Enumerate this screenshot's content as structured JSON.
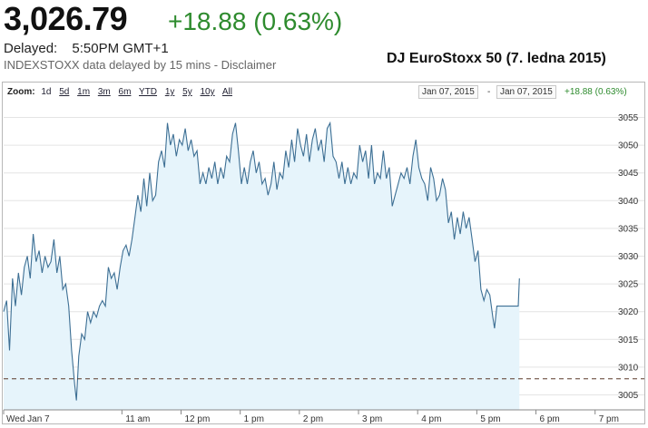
{
  "header": {
    "price": "3,026.79",
    "change": "+18.88 (0.63%)",
    "delayed_label": "Delayed:",
    "delayed_time": "5:50PM GMT+1",
    "source_note": "INDEXSTOXX data delayed by 15 mins - Disclaimer",
    "chart_title": "DJ EuroStoxx 50 (7. ledna 2015)"
  },
  "toolbar": {
    "zoom_label": "Zoom:",
    "zoom_options": [
      "1d",
      "5d",
      "1m",
      "3m",
      "6m",
      "YTD",
      "1y",
      "5y",
      "10y",
      "All"
    ],
    "date_from": "Jan 07, 2015",
    "date_sep": "-",
    "date_to": "Jan 07, 2015",
    "range_change": "+18.88 (0.63%)"
  },
  "colors": {
    "line": "#3d6f94",
    "fill": "#e6f4fb",
    "positive": "#2e8b2e",
    "reference_line": "#5a3a2a"
  },
  "chart_data": {
    "type": "area",
    "x_unit": "hours (local time)",
    "xlim": [
      9.0,
      19.5
    ],
    "ylim": [
      3003,
      3057
    ],
    "yticks": [
      3005,
      3010,
      3015,
      3020,
      3025,
      3030,
      3035,
      3040,
      3045,
      3050,
      3055
    ],
    "xtick_labels": [
      {
        "x": 9.0,
        "label": "Wed Jan 7"
      },
      {
        "x": 11.0,
        "label": "11 am"
      },
      {
        "x": 12.0,
        "label": "12 pm"
      },
      {
        "x": 13.0,
        "label": "1 pm"
      },
      {
        "x": 14.0,
        "label": "2 pm"
      },
      {
        "x": 15.0,
        "label": "3 pm"
      },
      {
        "x": 16.0,
        "label": "4 pm"
      },
      {
        "x": 17.0,
        "label": "5 pm"
      },
      {
        "x": 18.0,
        "label": "6 pm"
      },
      {
        "x": 19.0,
        "label": "7 pm"
      }
    ],
    "previous_close": 3007.91,
    "grid": "horizontal",
    "series": [
      {
        "values": [
          [
            9.0,
            3020
          ],
          [
            9.05,
            3022
          ],
          [
            9.1,
            3013
          ],
          [
            9.15,
            3026
          ],
          [
            9.2,
            3021
          ],
          [
            9.25,
            3027
          ],
          [
            9.3,
            3023
          ],
          [
            9.35,
            3028
          ],
          [
            9.4,
            3030
          ],
          [
            9.45,
            3026
          ],
          [
            9.5,
            3034
          ],
          [
            9.55,
            3029
          ],
          [
            9.6,
            3031
          ],
          [
            9.65,
            3027
          ],
          [
            9.7,
            3030
          ],
          [
            9.75,
            3028
          ],
          [
            9.8,
            3029
          ],
          [
            9.85,
            3033
          ],
          [
            9.9,
            3027
          ],
          [
            9.95,
            3030
          ],
          [
            10.0,
            3024
          ],
          [
            10.05,
            3025
          ],
          [
            10.1,
            3021
          ],
          [
            10.15,
            3013
          ],
          [
            10.2,
            3007
          ],
          [
            10.23,
            3004
          ],
          [
            10.27,
            3012
          ],
          [
            10.32,
            3016
          ],
          [
            10.37,
            3015
          ],
          [
            10.42,
            3020
          ],
          [
            10.47,
            3018
          ],
          [
            10.52,
            3020
          ],
          [
            10.57,
            3019
          ],
          [
            10.62,
            3021
          ],
          [
            10.67,
            3022
          ],
          [
            10.72,
            3021
          ],
          [
            10.77,
            3028
          ],
          [
            10.82,
            3026
          ],
          [
            10.87,
            3027
          ],
          [
            10.92,
            3024
          ],
          [
            10.97,
            3028
          ],
          [
            11.02,
            3031
          ],
          [
            11.07,
            3032
          ],
          [
            11.12,
            3030
          ],
          [
            11.17,
            3033
          ],
          [
            11.22,
            3037
          ],
          [
            11.27,
            3041
          ],
          [
            11.32,
            3038
          ],
          [
            11.37,
            3044
          ],
          [
            11.42,
            3039
          ],
          [
            11.47,
            3045
          ],
          [
            11.52,
            3040
          ],
          [
            11.57,
            3041
          ],
          [
            11.62,
            3047
          ],
          [
            11.67,
            3049
          ],
          [
            11.72,
            3046
          ],
          [
            11.77,
            3054
          ],
          [
            11.82,
            3050
          ],
          [
            11.87,
            3052
          ],
          [
            11.92,
            3048
          ],
          [
            11.97,
            3051
          ],
          [
            12.02,
            3050
          ],
          [
            12.07,
            3053
          ],
          [
            12.12,
            3049
          ],
          [
            12.17,
            3051
          ],
          [
            12.22,
            3048
          ],
          [
            12.27,
            3049
          ],
          [
            12.32,
            3043
          ],
          [
            12.37,
            3045
          ],
          [
            12.42,
            3043
          ],
          [
            12.47,
            3046
          ],
          [
            12.52,
            3044
          ],
          [
            12.57,
            3047
          ],
          [
            12.62,
            3043
          ],
          [
            12.67,
            3046
          ],
          [
            12.72,
            3044
          ],
          [
            12.77,
            3048
          ],
          [
            12.82,
            3047
          ],
          [
            12.87,
            3052
          ],
          [
            12.92,
            3054
          ],
          [
            12.97,
            3049
          ],
          [
            13.02,
            3043
          ],
          [
            13.07,
            3046
          ],
          [
            13.12,
            3043
          ],
          [
            13.17,
            3047
          ],
          [
            13.22,
            3049
          ],
          [
            13.27,
            3045
          ],
          [
            13.32,
            3047
          ],
          [
            13.37,
            3043
          ],
          [
            13.42,
            3044
          ],
          [
            13.47,
            3041
          ],
          [
            13.52,
            3043
          ],
          [
            13.57,
            3047
          ],
          [
            13.62,
            3042
          ],
          [
            13.67,
            3045
          ],
          [
            13.72,
            3044
          ],
          [
            13.77,
            3049
          ],
          [
            13.82,
            3046
          ],
          [
            13.87,
            3051
          ],
          [
            13.92,
            3047
          ],
          [
            13.97,
            3053
          ],
          [
            14.02,
            3050
          ],
          [
            14.07,
            3048
          ],
          [
            14.12,
            3052
          ],
          [
            14.17,
            3047
          ],
          [
            14.22,
            3051
          ],
          [
            14.27,
            3053
          ],
          [
            14.32,
            3049
          ],
          [
            14.37,
            3051
          ],
          [
            14.42,
            3047
          ],
          [
            14.47,
            3053
          ],
          [
            14.52,
            3054
          ],
          [
            14.57,
            3048
          ],
          [
            14.62,
            3047
          ],
          [
            14.67,
            3044
          ],
          [
            14.72,
            3047
          ],
          [
            14.77,
            3043
          ],
          [
            14.82,
            3046
          ],
          [
            14.87,
            3043
          ],
          [
            14.92,
            3045
          ],
          [
            14.97,
            3044
          ],
          [
            15.02,
            3050
          ],
          [
            15.07,
            3047
          ],
          [
            15.12,
            3049
          ],
          [
            15.17,
            3044
          ],
          [
            15.22,
            3050
          ],
          [
            15.27,
            3043
          ],
          [
            15.32,
            3045
          ],
          [
            15.37,
            3044
          ],
          [
            15.42,
            3049
          ],
          [
            15.47,
            3044
          ],
          [
            15.52,
            3046
          ],
          [
            15.57,
            3039
          ],
          [
            15.62,
            3041
          ],
          [
            15.67,
            3043
          ],
          [
            15.72,
            3045
          ],
          [
            15.77,
            3044
          ],
          [
            15.82,
            3046
          ],
          [
            15.87,
            3043
          ],
          [
            15.92,
            3048
          ],
          [
            15.97,
            3051
          ],
          [
            16.02,
            3046
          ],
          [
            16.07,
            3044
          ],
          [
            16.12,
            3043
          ],
          [
            16.17,
            3040
          ],
          [
            16.22,
            3046
          ],
          [
            16.27,
            3044
          ],
          [
            16.32,
            3040
          ],
          [
            16.37,
            3041
          ],
          [
            16.42,
            3044
          ],
          [
            16.47,
            3042
          ],
          [
            16.52,
            3036
          ],
          [
            16.57,
            3038
          ],
          [
            16.62,
            3033
          ],
          [
            16.67,
            3037
          ],
          [
            16.72,
            3034
          ],
          [
            16.77,
            3038
          ],
          [
            16.82,
            3035
          ],
          [
            16.87,
            3037
          ],
          [
            16.92,
            3033
          ],
          [
            16.97,
            3029
          ],
          [
            17.02,
            3031
          ],
          [
            17.07,
            3024
          ],
          [
            17.12,
            3022
          ],
          [
            17.17,
            3024
          ],
          [
            17.22,
            3023
          ],
          [
            17.27,
            3019
          ],
          [
            17.3,
            3017
          ],
          [
            17.34,
            3021
          ],
          [
            17.4,
            3021
          ],
          [
            17.6,
            3021
          ],
          [
            17.7,
            3021
          ],
          [
            17.72,
            3026
          ]
        ]
      }
    ]
  }
}
